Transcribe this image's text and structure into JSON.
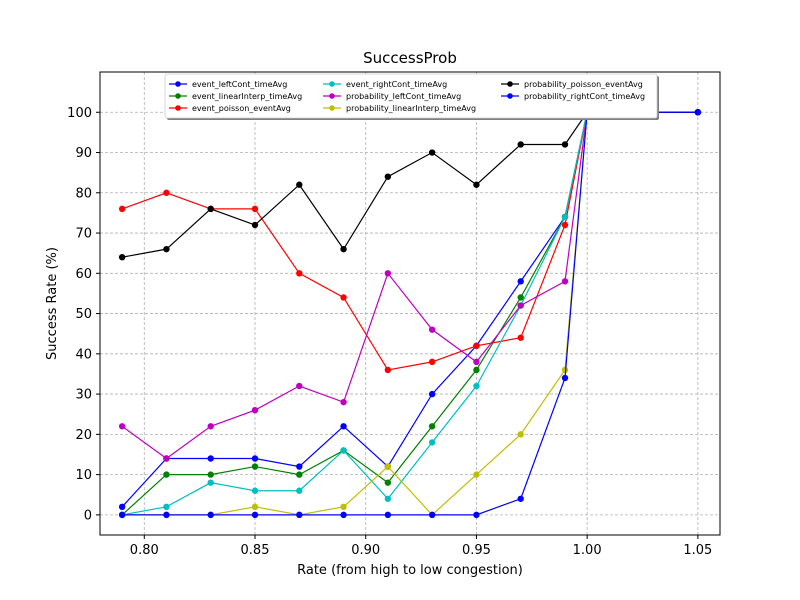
{
  "chart_data": {
    "type": "line",
    "title": "SuccessProb",
    "xlabel": "Rate (from high to low congestion)",
    "ylabel": "Success Rate (%)",
    "xlim": [
      0.78,
      1.06
    ],
    "ylim": [
      -5,
      110
    ],
    "xticks": [
      0.8,
      0.85,
      0.9,
      0.95,
      1.0,
      1.05
    ],
    "xtick_labels": [
      "0.80",
      "0.85",
      "0.90",
      "0.95",
      "1.00",
      "1.05"
    ],
    "yticks": [
      0,
      10,
      20,
      30,
      40,
      50,
      60,
      70,
      80,
      90,
      100
    ],
    "ytick_labels": [
      "0",
      "10",
      "20",
      "30",
      "40",
      "50",
      "60",
      "70",
      "80",
      "90",
      "100"
    ],
    "grid": true,
    "legend_placement": "top-center",
    "x": [
      0.79,
      0.81,
      0.83,
      0.85,
      0.87,
      0.89,
      0.91,
      0.93,
      0.95,
      0.97,
      0.99,
      1.0,
      1.05
    ],
    "series": [
      {
        "name": "event_leftCont_timeAvg",
        "color": "#0000ff",
        "values": [
          2,
          14,
          14,
          14,
          12,
          22,
          12,
          30,
          42,
          58,
          74,
          100,
          100
        ]
      },
      {
        "name": "event_linearInterp_timeAvg",
        "color": "#008000",
        "values": [
          0,
          10,
          10,
          12,
          10,
          16,
          8,
          22,
          36,
          54,
          74,
          100,
          100
        ]
      },
      {
        "name": "event_poisson_eventAvg",
        "color": "#ff0000",
        "values": [
          76,
          80,
          76,
          76,
          60,
          54,
          36,
          38,
          42,
          44,
          72,
          100,
          100
        ]
      },
      {
        "name": "event_rightCont_timeAvg",
        "color": "#00bfbf",
        "values": [
          0,
          2,
          8,
          6,
          6,
          16,
          4,
          18,
          32,
          52,
          74,
          100,
          100
        ]
      },
      {
        "name": "probability_leftCont_timeAvg",
        "color": "#bf00bf",
        "values": [
          22,
          14,
          22,
          26,
          32,
          28,
          60,
          46,
          38,
          52,
          58,
          100,
          100
        ]
      },
      {
        "name": "probability_linearInterp_timeAvg",
        "color": "#bfbf00",
        "values": [
          0,
          0,
          0,
          2,
          0,
          2,
          12,
          0,
          10,
          20,
          36,
          100,
          100
        ]
      },
      {
        "name": "probability_poisson_eventAvg",
        "color": "#000000",
        "values": [
          64,
          66,
          76,
          72,
          82,
          66,
          84,
          90,
          82,
          92,
          92,
          100,
          100
        ]
      },
      {
        "name": "probability_rightCont_timeAvg",
        "color": "#0000ff",
        "values": [
          0,
          0,
          0,
          0,
          0,
          0,
          0,
          0,
          0,
          4,
          34,
          100,
          100
        ]
      }
    ]
  }
}
